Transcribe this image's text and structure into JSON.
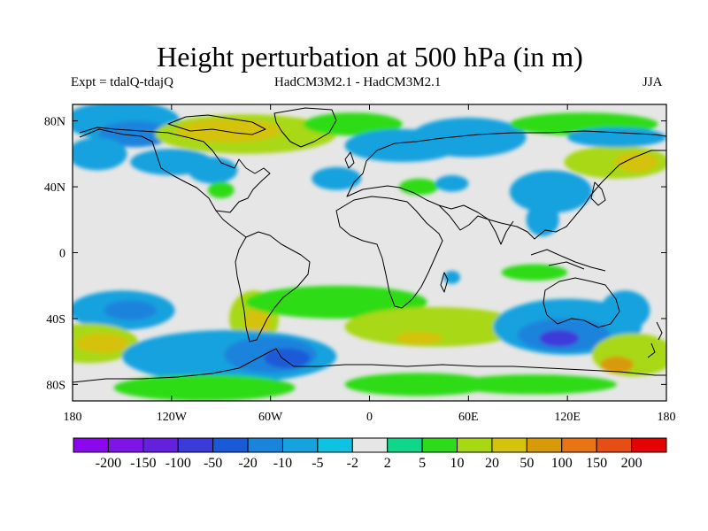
{
  "title": "Height perturbation at 500 hPa (in m)",
  "experiment": "Expt = tdalQ-tdajQ",
  "models": "HadCM3M2.1 - HadCM3M2.1",
  "season": "JJA",
  "map": {
    "lon_range": [
      -180,
      180
    ],
    "lat_range": [
      -90,
      90
    ],
    "lat_labels": [
      {
        "lat": 80,
        "text": "80N"
      },
      {
        "lat": 40,
        "text": "40N"
      },
      {
        "lat": 0,
        "text": "0"
      },
      {
        "lat": -40,
        "text": "40S"
      },
      {
        "lat": -80,
        "text": "80S"
      }
    ],
    "lon_labels": [
      {
        "lon": -180,
        "text": "180"
      },
      {
        "lon": -120,
        "text": "120W"
      },
      {
        "lon": -60,
        "text": "60W"
      },
      {
        "lon": 0,
        "text": "0"
      },
      {
        "lon": 60,
        "text": "60E"
      },
      {
        "lon": 120,
        "text": "120E"
      },
      {
        "lon": 180,
        "text": "180"
      }
    ]
  },
  "colorbar": {
    "colors": [
      "#8c08ec",
      "#7e14e6",
      "#6420dc",
      "#3d3ada",
      "#1a5ad8",
      "#1a83dc",
      "#16a2de",
      "#0ec3e2",
      "#e6e6e6",
      "#10d68a",
      "#2ddc18",
      "#a8d812",
      "#d4c20c",
      "#d89a08",
      "#e87414",
      "#e64e16",
      "#e40202"
    ],
    "labels": [
      "-200",
      "-150",
      "-100",
      "-50",
      "-20",
      "-10",
      "-5",
      "-2",
      "2",
      "5",
      "10",
      "20",
      "50",
      "100",
      "150",
      "200"
    ]
  },
  "fields": [
    {
      "lon": -150,
      "lat": 80,
      "rx": 35,
      "ry": 12,
      "value": -10
    },
    {
      "lon": -142,
      "lat": 72,
      "rx": 22,
      "ry": 8,
      "value": -20
    },
    {
      "lon": -75,
      "lat": 72,
      "rx": 55,
      "ry": 12,
      "value": 12
    },
    {
      "lon": -85,
      "lat": 74,
      "rx": 32,
      "ry": 7,
      "value": 25
    },
    {
      "lon": -10,
      "lat": 78,
      "rx": 30,
      "ry": 7,
      "value": 7
    },
    {
      "lon": 20,
      "lat": 65,
      "rx": 35,
      "ry": 10,
      "value": -7
    },
    {
      "lon": 60,
      "lat": 70,
      "rx": 35,
      "ry": 12,
      "value": -7
    },
    {
      "lon": 130,
      "lat": 78,
      "rx": 45,
      "ry": 7,
      "value": 7
    },
    {
      "lon": 150,
      "lat": 55,
      "rx": 32,
      "ry": 10,
      "value": 12
    },
    {
      "lon": 162,
      "lat": 55,
      "rx": 13,
      "ry": 6,
      "value": 25
    },
    {
      "lon": 150,
      "lat": 70,
      "rx": 30,
      "ry": 6,
      "value": -7
    },
    {
      "lon": -120,
      "lat": 55,
      "rx": 25,
      "ry": 8,
      "value": -7
    },
    {
      "lon": -165,
      "lat": 60,
      "rx": 18,
      "ry": 10,
      "value": -7
    },
    {
      "lon": -95,
      "lat": 50,
      "rx": 15,
      "ry": 8,
      "value": -7
    },
    {
      "lon": -90,
      "lat": 38,
      "rx": 8,
      "ry": 5,
      "value": 7
    },
    {
      "lon": -20,
      "lat": 45,
      "rx": 15,
      "ry": 7,
      "value": -7
    },
    {
      "lon": 30,
      "lat": 40,
      "rx": 12,
      "ry": 5,
      "value": 7
    },
    {
      "lon": 50,
      "lat": 42,
      "rx": 10,
      "ry": 5,
      "value": -7
    },
    {
      "lon": 110,
      "lat": 37,
      "rx": 25,
      "ry": 13,
      "value": -10
    },
    {
      "lon": 105,
      "lat": 20,
      "rx": 10,
      "ry": 10,
      "value": -7
    },
    {
      "lon": 100,
      "lat": -12,
      "rx": 20,
      "ry": 5,
      "value": 7
    },
    {
      "lon": 50,
      "lat": -15,
      "rx": 5,
      "ry": 4,
      "value": -7
    },
    {
      "lon": -150,
      "lat": -35,
      "rx": 32,
      "ry": 12,
      "value": -10
    },
    {
      "lon": -145,
      "lat": -35,
      "rx": 16,
      "ry": 6,
      "value": -20
    },
    {
      "lon": -170,
      "lat": -55,
      "rx": 30,
      "ry": 12,
      "value": 10
    },
    {
      "lon": -162,
      "lat": -55,
      "rx": 16,
      "ry": 6,
      "value": 25
    },
    {
      "lon": -70,
      "lat": -40,
      "rx": 15,
      "ry": 17,
      "value": 12
    },
    {
      "lon": -68,
      "lat": -42,
      "rx": 8,
      "ry": 9,
      "value": 25
    },
    {
      "lon": -20,
      "lat": -30,
      "rx": 55,
      "ry": 10,
      "value": 8
    },
    {
      "lon": 40,
      "lat": -45,
      "rx": 55,
      "ry": 12,
      "value": 10
    },
    {
      "lon": 30,
      "lat": -52,
      "rx": 14,
      "ry": 4,
      "value": 25
    },
    {
      "lon": -85,
      "lat": -63,
      "rx": 65,
      "ry": 16,
      "value": -8
    },
    {
      "lon": -60,
      "lat": -62,
      "rx": 28,
      "ry": 11,
      "value": -12
    },
    {
      "lon": -50,
      "lat": -64,
      "rx": 14,
      "ry": 6,
      "value": -25
    },
    {
      "lon": -100,
      "lat": -82,
      "rx": 55,
      "ry": 8,
      "value": 8
    },
    {
      "lon": 30,
      "lat": -80,
      "rx": 45,
      "ry": 7,
      "value": 7
    },
    {
      "lon": 120,
      "lat": -45,
      "rx": 45,
      "ry": 17,
      "value": -10
    },
    {
      "lon": 118,
      "lat": -50,
      "rx": 28,
      "ry": 10,
      "value": -20
    },
    {
      "lon": 115,
      "lat": -52,
      "rx": 12,
      "ry": 5,
      "value": -55
    },
    {
      "lon": 160,
      "lat": -62,
      "rx": 25,
      "ry": 13,
      "value": 15
    },
    {
      "lon": 150,
      "lat": -68,
      "rx": 10,
      "ry": 5,
      "value": 55
    },
    {
      "lon": 155,
      "lat": -35,
      "rx": 15,
      "ry": 12,
      "value": -7
    },
    {
      "lon": 100,
      "lat": -80,
      "rx": 50,
      "ry": 6,
      "value": 7
    }
  ]
}
